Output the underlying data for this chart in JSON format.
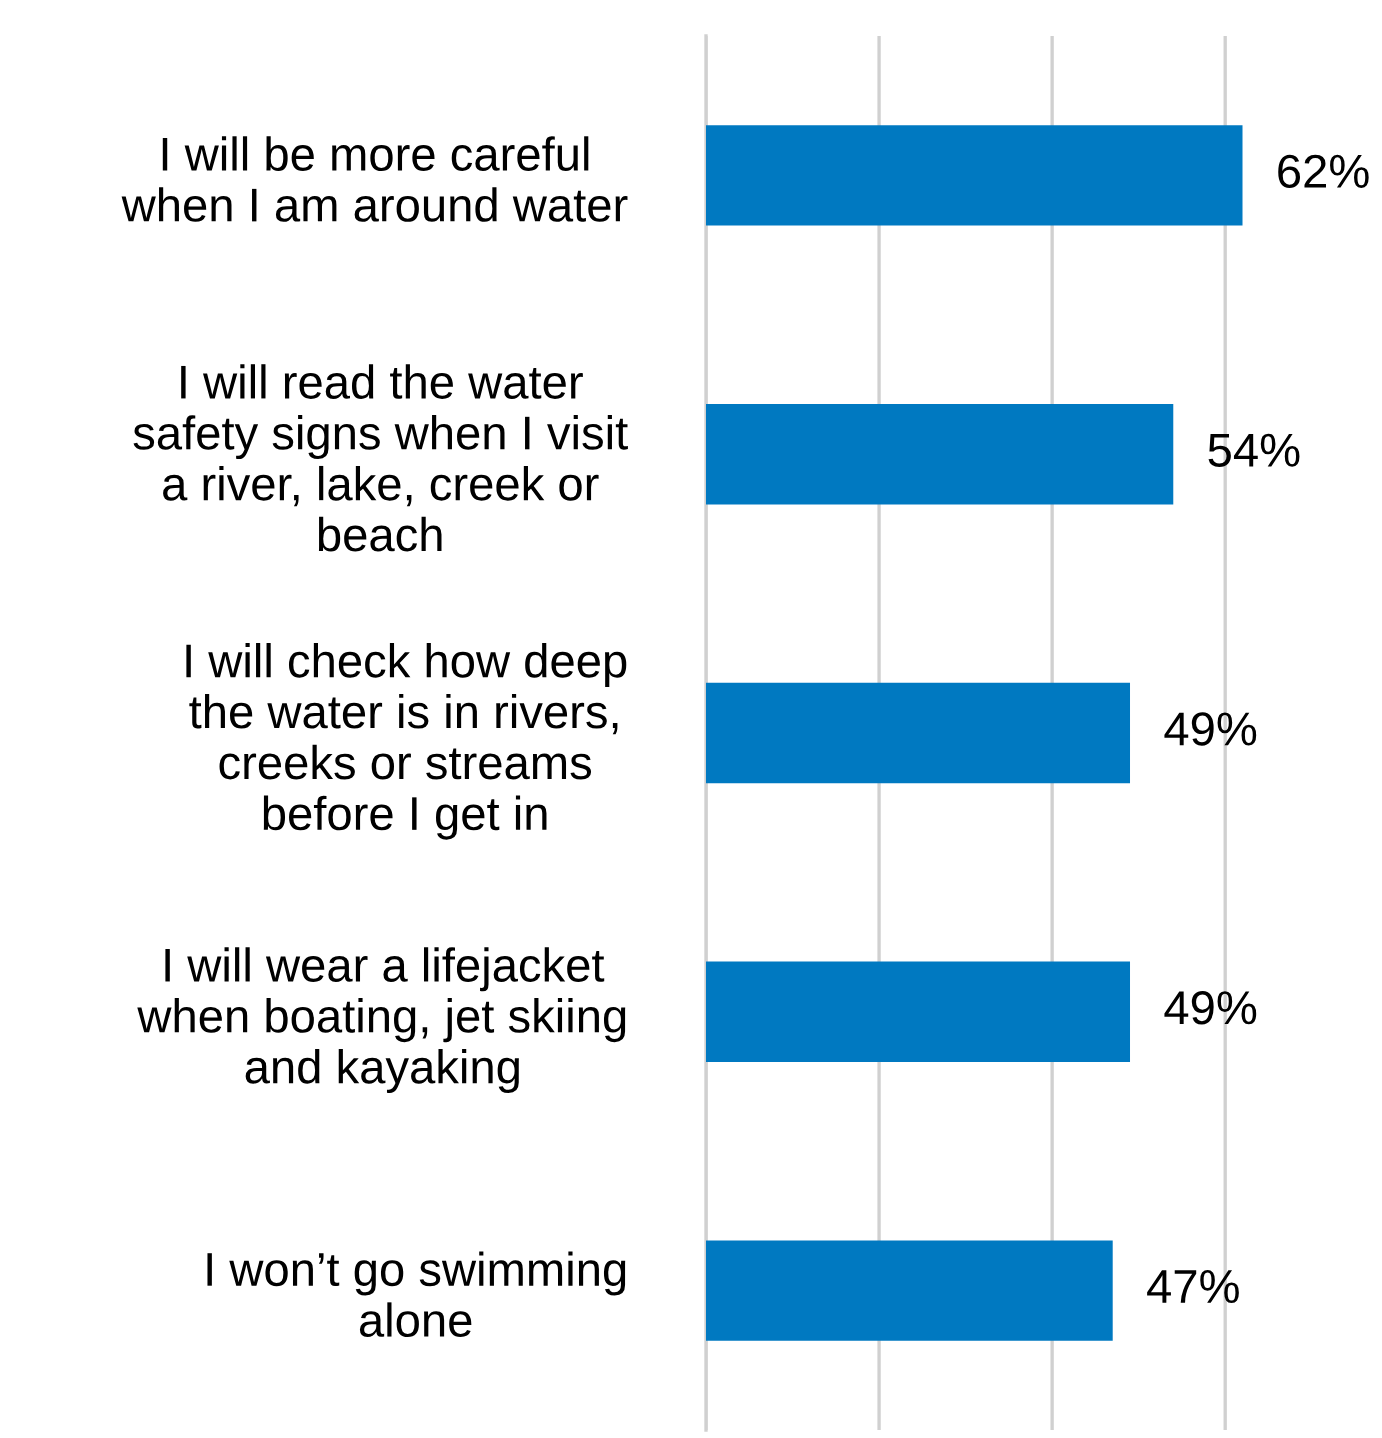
{
  "chart_data": {
    "type": "bar",
    "orientation": "horizontal",
    "categories": [
      "I will be more careful\nwhen I am around water",
      "I will read the water\nsafety signs when I visit\na river, lake, creek or\nbeach",
      "I will check how deep\nthe water is in rivers,\ncreeks or streams\nbefore I get in",
      "I will wear a lifejacket\nwhen boating, jet skiing\nand kayaking",
      "I won’t go swimming\nalone"
    ],
    "values": [
      62,
      54,
      49,
      49,
      47
    ],
    "value_labels": [
      "62%",
      "54%",
      "49%",
      "49%",
      "47%"
    ],
    "color": "#0079c1",
    "xticks": [
      {
        "value": 0,
        "label": null
      },
      {
        "value": 20,
        "label": null
      },
      {
        "value": 40,
        "label": null
      },
      {
        "value": 60,
        "label": null
      }
    ],
    "grid": "x",
    "tick_labels": "y"
  }
}
